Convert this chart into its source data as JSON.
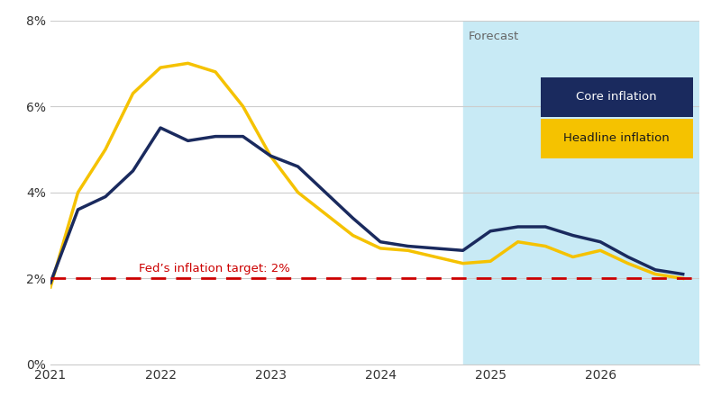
{
  "core_x": [
    2021.0,
    2021.25,
    2021.5,
    2021.75,
    2022.0,
    2022.25,
    2022.5,
    2022.75,
    2023.0,
    2023.25,
    2023.5,
    2023.75,
    2024.0,
    2024.25,
    2024.5,
    2024.75,
    2025.0,
    2025.25,
    2025.5,
    2025.75,
    2026.0,
    2026.25,
    2026.5,
    2026.75
  ],
  "core_y": [
    1.9,
    3.6,
    3.9,
    4.5,
    5.5,
    5.2,
    5.3,
    5.3,
    4.85,
    4.6,
    4.0,
    3.4,
    2.85,
    2.75,
    2.7,
    2.65,
    3.1,
    3.2,
    3.2,
    3.0,
    2.85,
    2.5,
    2.2,
    2.1
  ],
  "headline_x": [
    2021.0,
    2021.25,
    2021.5,
    2021.75,
    2022.0,
    2022.25,
    2022.5,
    2022.75,
    2023.0,
    2023.25,
    2023.5,
    2023.75,
    2024.0,
    2024.25,
    2024.5,
    2024.75,
    2025.0,
    2025.25,
    2025.5,
    2025.75,
    2026.0,
    2026.25,
    2026.5,
    2026.75
  ],
  "headline_y": [
    1.8,
    4.0,
    5.0,
    6.3,
    6.9,
    7.0,
    6.8,
    6.0,
    4.85,
    4.0,
    3.5,
    3.0,
    2.7,
    2.65,
    2.5,
    2.35,
    2.4,
    2.85,
    2.75,
    2.5,
    2.65,
    2.35,
    2.1,
    2.0
  ],
  "core_color": "#1a2a5e",
  "headline_color": "#f5c200",
  "fed_target": 2.0,
  "fed_target_color": "#cc0000",
  "fed_label": "Fed’s inflation target: 2%",
  "forecast_start": 2024.75,
  "forecast_label": "Forecast",
  "forecast_bg": "#c8eaf5",
  "legend_core": "Core inflation",
  "legend_headline": "Headline inflation",
  "ylim": [
    0,
    8
  ],
  "xlim": [
    2021.0,
    2026.9
  ],
  "yticks": [
    0,
    2,
    4,
    6,
    8
  ],
  "ytick_labels": [
    "0%",
    "2%",
    "4%",
    "6%",
    "8%"
  ],
  "xticks": [
    2021,
    2022,
    2023,
    2024,
    2025,
    2026
  ],
  "background_color": "#ffffff"
}
